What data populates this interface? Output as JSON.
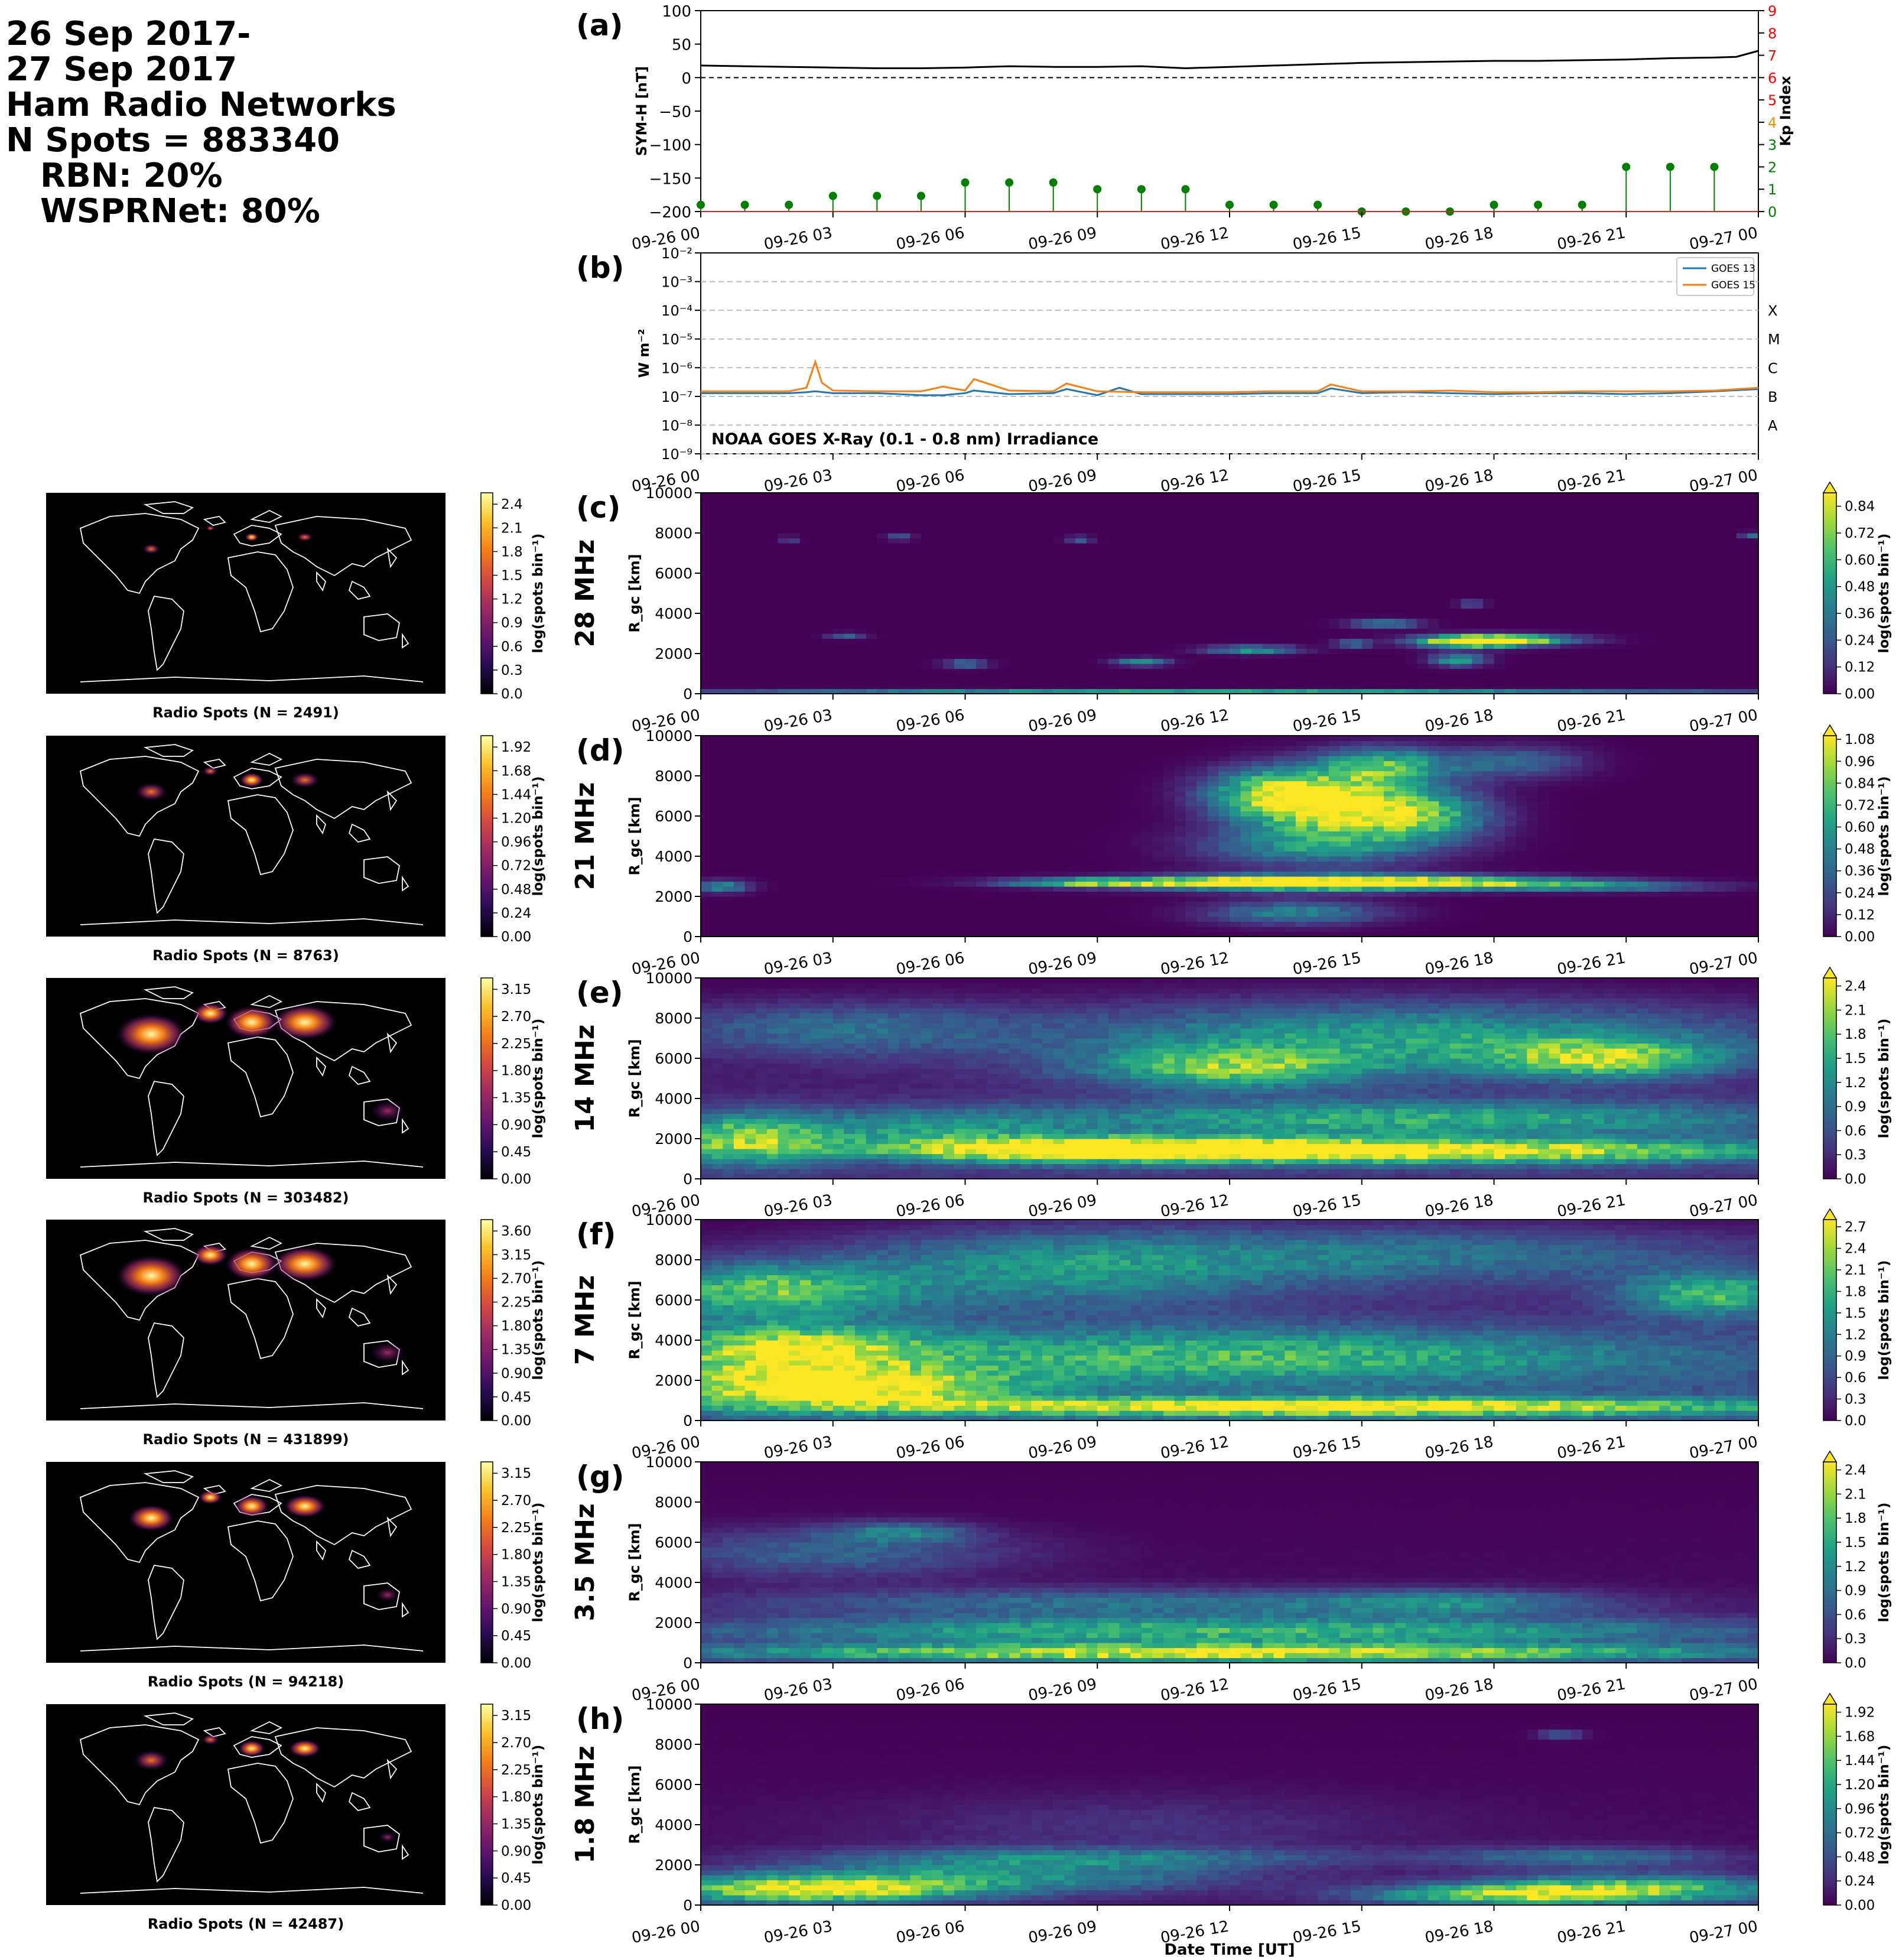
{
  "header": {
    "line1": "26 Sep 2017-",
    "line2": "27 Sep 2017",
    "line3": "Ham Radio Networks",
    "line4": "N Spots = 883340",
    "line5": "RBN: 20%",
    "line6": "WSPRNet: 80%"
  },
  "time_ticks": [
    "09-26 00",
    "09-26 03",
    "09-26 06",
    "09-26 09",
    "09-26 12",
    "09-26 15",
    "09-26 18",
    "09-26 21",
    "09-27 00"
  ],
  "xlabel": "Date Time [UT]",
  "colors": {
    "symh_line": "#000000",
    "kp_stems": "#008000",
    "goes13": "#1f77b4",
    "goes15": "#ff7f0e",
    "kp_green_ticks": "#008000",
    "kp_orange_ticks": "#ff8c00",
    "kp_red_ticks": "#ff0000",
    "viridis_low": "#440154",
    "viridis_high": "#fde725",
    "inferno_low": "#000004",
    "inferno_high": "#fcffa4"
  },
  "chart_data": [
    {
      "panel": "(a)",
      "type": "line",
      "title": "",
      "ylabel": "SYM-H [nT]",
      "ylabel_right": "Kp Index",
      "ylim": [
        -200,
        100
      ],
      "yticks": [
        100,
        50,
        0,
        -50,
        -100,
        -150,
        -200
      ],
      "ylim_right": [
        0,
        9
      ],
      "yticks_right": [
        0,
        1,
        2,
        3,
        4,
        5,
        6,
        7,
        8,
        9
      ],
      "zero_line": "dashed",
      "series": [
        {
          "kind": "line",
          "x_hours": [
            0,
            1,
            2,
            3,
            4,
            5,
            6,
            7,
            8,
            9,
            10,
            11,
            12,
            13,
            14,
            15,
            16,
            17,
            18,
            19,
            20,
            21,
            22,
            23,
            23.5,
            24
          ],
          "values": [
            18,
            17,
            16,
            15,
            14,
            14,
            15,
            17,
            16,
            16,
            17,
            14,
            16,
            18,
            20,
            22,
            23,
            24,
            25,
            25,
            26,
            27,
            29,
            30,
            31,
            40
          ]
        },
        {
          "kind": "stem",
          "x_hours": [
            0,
            1,
            2,
            3,
            4,
            5,
            6,
            7,
            8,
            9,
            10,
            11,
            12,
            13,
            14,
            15,
            16,
            17,
            18,
            19,
            20,
            21,
            22,
            23
          ],
          "values": [
            0.3,
            0.3,
            0.3,
            0.7,
            0.7,
            0.7,
            1.3,
            1.3,
            1.3,
            1.0,
            1.0,
            1.0,
            0.3,
            0.3,
            0.3,
            0.0,
            0.0,
            0.0,
            0.3,
            0.3,
            0.3,
            2.0,
            2.0,
            2.0
          ]
        }
      ]
    },
    {
      "panel": "(b)",
      "type": "line",
      "title": "NOAA GOES X-Ray (0.1 - 0.8 nm) Irradiance",
      "ylabel": "W m⁻²",
      "yscale": "log",
      "ylim": [
        1e-09,
        0.01
      ],
      "yticks": [
        "10⁻²",
        "10⁻³",
        "10⁻⁴",
        "10⁻⁵",
        "10⁻⁶",
        "10⁻⁷",
        "10⁻⁸",
        "10⁻⁹"
      ],
      "flare_classes": [
        "X",
        "M",
        "C",
        "B",
        "A"
      ],
      "legend": "top-right",
      "series": [
        {
          "name": "GOES 13",
          "x_hours": [
            0,
            1,
            2,
            2.4,
            2.6,
            3,
            4,
            5,
            5.5,
            6,
            6.2,
            7,
            8,
            8.3,
            9,
            9.5,
            10,
            11,
            12,
            13,
            14,
            14.3,
            15,
            16,
            17,
            18,
            19,
            20,
            21,
            22,
            23,
            24
          ],
          "values": [
            1.3e-07,
            1.3e-07,
            1.3e-07,
            1.4e-07,
            1.5e-07,
            1.3e-07,
            1.3e-07,
            1.1e-07,
            1.1e-07,
            1.3e-07,
            1.6e-07,
            1.2e-07,
            1.3e-07,
            1.8e-07,
            1.1e-07,
            2e-07,
            1.2e-07,
            1.2e-07,
            1.2e-07,
            1.3e-07,
            1.3e-07,
            1.9e-07,
            1.3e-07,
            1.4e-07,
            1.3e-07,
            1.2e-07,
            1.3e-07,
            1.3e-07,
            1.2e-07,
            1.3e-07,
            1.5e-07,
            1.8e-07
          ]
        },
        {
          "name": "GOES 15",
          "x_hours": [
            0,
            1,
            2,
            2.4,
            2.6,
            2.75,
            3,
            4,
            5,
            5.5,
            6,
            6.2,
            7,
            8,
            8.3,
            9,
            10,
            11,
            12,
            13,
            14,
            14.3,
            15,
            16,
            17,
            18,
            19,
            20,
            21,
            22,
            23,
            24
          ],
          "values": [
            1.5e-07,
            1.5e-07,
            1.5e-07,
            2e-07,
            1.6e-06,
            3e-07,
            1.6e-07,
            1.5e-07,
            1.5e-07,
            2.2e-07,
            1.6e-07,
            4e-07,
            1.6e-07,
            1.5e-07,
            2.8e-07,
            1.5e-07,
            1.4e-07,
            1.4e-07,
            1.4e-07,
            1.5e-07,
            1.5e-07,
            2.6e-07,
            1.5e-07,
            1.5e-07,
            1.6e-07,
            1.4e-07,
            1.4e-07,
            1.5e-07,
            1.5e-07,
            1.5e-07,
            1.6e-07,
            2e-07
          ]
        }
      ]
    },
    {
      "panel": "(c)",
      "band": "28 MHz",
      "type": "heatmap",
      "ylabel": "R_gc [km]",
      "ylim": [
        0,
        10000
      ],
      "yticks": [
        0,
        2000,
        4000,
        6000,
        8000,
        10000
      ],
      "cbar_label": "log(spots bin⁻¹)",
      "cbar_ticks": [
        "0.00",
        "0.12",
        "0.24",
        "0.36",
        "0.48",
        "0.60",
        "0.72",
        "0.84"
      ],
      "cbar_max": 0.9,
      "map_caption": "Radio Spots (N = 2491)",
      "map_cbar_ticks": [
        "0.0",
        "0.3",
        "0.6",
        "0.9",
        "1.2",
        "1.5",
        "1.8",
        "2.1",
        "2.4"
      ],
      "blobs": [
        [
          17.5,
          2600,
          1.2,
          300,
          0.95
        ],
        [
          18.3,
          2700,
          1.5,
          250,
          0.9
        ],
        [
          17.2,
          1700,
          0.6,
          300,
          0.6
        ],
        [
          12.5,
          2200,
          1.0,
          200,
          0.6
        ],
        [
          10,
          1600,
          0.6,
          200,
          0.5
        ],
        [
          15.5,
          3500,
          0.8,
          200,
          0.5
        ],
        [
          14.8,
          2500,
          0.4,
          200,
          0.4
        ],
        [
          6,
          1500,
          0.5,
          200,
          0.4
        ],
        [
          3.3,
          2900,
          0.4,
          150,
          0.35
        ],
        [
          4.5,
          7800,
          0.3,
          150,
          0.35
        ],
        [
          8.6,
          7700,
          0.3,
          150,
          0.35
        ],
        [
          23.8,
          7900,
          0.2,
          150,
          0.4
        ],
        [
          2,
          7700,
          0.2,
          150,
          0.3
        ],
        [
          17.5,
          4500,
          0.3,
          150,
          0.4
        ],
        [
          12,
          150,
          12,
          100,
          0.6
        ]
      ],
      "bg": 0.0
    },
    {
      "panel": "(d)",
      "band": "21 MHz",
      "type": "heatmap",
      "ylabel": "R_gc [km]",
      "ylim": [
        0,
        10000
      ],
      "yticks": [
        0,
        2000,
        4000,
        6000,
        8000,
        10000
      ],
      "cbar_label": "log(spots bin⁻¹)",
      "cbar_ticks": [
        "0.00",
        "0.12",
        "0.24",
        "0.36",
        "0.48",
        "0.60",
        "0.72",
        "0.84",
        "0.96",
        "1.08"
      ],
      "cbar_max": 1.1,
      "map_caption": "Radio Spots (N = 8763)",
      "map_cbar_ticks": [
        "0.00",
        "0.24",
        "0.48",
        "0.72",
        "0.96",
        "1.20",
        "1.44",
        "1.68",
        "1.92"
      ],
      "blobs": [
        [
          14.5,
          6500,
          2.0,
          1400,
          0.95
        ],
        [
          15.5,
          8500,
          1.5,
          900,
          0.7
        ],
        [
          13,
          7200,
          1.5,
          1200,
          0.7
        ],
        [
          14,
          2700,
          3.5,
          400,
          0.95
        ],
        [
          11.5,
          2700,
          3.5,
          250,
          0.6
        ],
        [
          17.5,
          2700,
          3.0,
          300,
          0.6
        ],
        [
          20.5,
          2500,
          2.5,
          250,
          0.4
        ],
        [
          0.5,
          2500,
          0.6,
          300,
          0.5
        ],
        [
          14,
          4500,
          2.5,
          1000,
          0.5
        ],
        [
          13.5,
          1200,
          2.0,
          600,
          0.45
        ],
        [
          16.5,
          6000,
          1.5,
          1200,
          0.55
        ],
        [
          18.5,
          8700,
          1.5,
          800,
          0.35
        ],
        [
          8.5,
          2700,
          1.5,
          200,
          0.5
        ]
      ],
      "bg": 0.0
    },
    {
      "panel": "(e)",
      "band": "14 MHz",
      "type": "heatmap",
      "ylabel": "R_gc [km]",
      "ylim": [
        0,
        10000
      ],
      "yticks": [
        0,
        2000,
        4000,
        6000,
        8000,
        10000
      ],
      "cbar_label": "log(spots bin⁻¹)",
      "cbar_ticks": [
        "0.0",
        "0.3",
        "0.6",
        "0.9",
        "1.2",
        "1.5",
        "1.8",
        "2.1",
        "2.4"
      ],
      "cbar_max": 2.5,
      "map_caption": "Radio Spots (N = 303482)",
      "map_cbar_ticks": [
        "0.00",
        "0.45",
        "0.90",
        "1.35",
        "1.80",
        "2.25",
        "2.70",
        "3.15"
      ],
      "blobs": [
        [
          16,
          1400,
          9,
          600,
          0.95
        ],
        [
          9,
          1500,
          5,
          600,
          0.8
        ],
        [
          1,
          2000,
          1.8,
          1200,
          0.7
        ],
        [
          12,
          5500,
          3,
          1000,
          0.6
        ],
        [
          20.5,
          6000,
          2.5,
          900,
          0.65
        ],
        [
          16,
          7000,
          8,
          1800,
          0.55
        ],
        [
          3,
          7500,
          4,
          1300,
          0.3
        ],
        [
          16,
          3000,
          9,
          900,
          0.55
        ],
        [
          5,
          2500,
          3,
          900,
          0.35
        ]
      ],
      "bg": 0.15
    },
    {
      "panel": "(f)",
      "band": "7 MHz",
      "type": "heatmap",
      "ylabel": "R_gc [km]",
      "ylim": [
        0,
        10000
      ],
      "yticks": [
        0,
        2000,
        4000,
        6000,
        8000,
        10000
      ],
      "cbar_label": "log(spots bin⁻¹)",
      "cbar_ticks": [
        "0.0",
        "0.3",
        "0.6",
        "0.9",
        "1.2",
        "1.5",
        "1.8",
        "2.1",
        "2.4",
        "2.7"
      ],
      "cbar_max": 2.8,
      "map_caption": "Radio Spots (N = 431899)",
      "map_cbar_ticks": [
        "0.00",
        "0.45",
        "0.90",
        "1.35",
        "1.80",
        "2.25",
        "2.70",
        "3.15",
        "3.60"
      ],
      "blobs": [
        [
          14,
          700,
          10,
          450,
          0.95
        ],
        [
          3,
          1600,
          4,
          900,
          0.9
        ],
        [
          2,
          3500,
          3,
          1300,
          0.75
        ],
        [
          12,
          3200,
          10,
          1400,
          0.55
        ],
        [
          1.5,
          6500,
          3,
          1300,
          0.65
        ],
        [
          23,
          6300,
          2,
          1100,
          0.6
        ],
        [
          8,
          7500,
          5,
          2000,
          0.4
        ],
        [
          16,
          8300,
          8,
          1500,
          0.35
        ]
      ],
      "bg": 0.25
    },
    {
      "panel": "(g)",
      "band": "3.5 MHz",
      "type": "heatmap",
      "ylabel": "R_gc [km]",
      "ylim": [
        0,
        10000
      ],
      "yticks": [
        0,
        2000,
        4000,
        6000,
        8000,
        10000
      ],
      "cbar_label": "log(spots bin⁻¹)",
      "cbar_ticks": [
        "0.0",
        "0.3",
        "0.6",
        "0.9",
        "1.2",
        "1.5",
        "1.8",
        "2.1",
        "2.4"
      ],
      "cbar_max": 2.5,
      "map_caption": "Radio Spots (N = 94218)",
      "map_cbar_ticks": [
        "0.00",
        "0.45",
        "0.90",
        "1.35",
        "1.80",
        "2.25",
        "2.70",
        "3.15"
      ],
      "blobs": [
        [
          12,
          500,
          12,
          450,
          0.95
        ],
        [
          12,
          1600,
          12,
          700,
          0.65
        ],
        [
          10,
          3000,
          9,
          700,
          0.35
        ],
        [
          3,
          5500,
          4,
          1200,
          0.3
        ],
        [
          4.5,
          6500,
          1.5,
          500,
          0.35
        ],
        [
          17,
          3000,
          3,
          600,
          0.3
        ]
      ],
      "bg": 0.05
    },
    {
      "panel": "(h)",
      "band": "1.8 MHz",
      "type": "heatmap",
      "ylabel": "R_gc [km]",
      "ylim": [
        0,
        10000
      ],
      "yticks": [
        0,
        2000,
        4000,
        6000,
        8000,
        10000
      ],
      "cbar_label": "log(spots bin⁻¹)",
      "cbar_ticks": [
        "0.00",
        "0.24",
        "0.48",
        "0.72",
        "0.96",
        "1.20",
        "1.44",
        "1.68",
        "1.92"
      ],
      "cbar_max": 2.0,
      "map_caption": "Radio Spots (N = 42487)",
      "map_cbar_ticks": [
        "0.00",
        "0.45",
        "0.90",
        "1.35",
        "1.80",
        "2.25",
        "2.70",
        "3.15"
      ],
      "blobs": [
        [
          2.5,
          800,
          3.5,
          700,
          0.95
        ],
        [
          21,
          800,
          3.5,
          700,
          0.75
        ],
        [
          18,
          500,
          3,
          500,
          0.6
        ],
        [
          7,
          1500,
          5,
          900,
          0.45
        ],
        [
          9,
          2400,
          6,
          500,
          0.3
        ],
        [
          20,
          2400,
          3,
          500,
          0.35
        ],
        [
          19.5,
          8500,
          0.5,
          200,
          0.35
        ],
        [
          10,
          4000,
          6,
          1500,
          0.12
        ]
      ],
      "bg": 0.05
    }
  ]
}
